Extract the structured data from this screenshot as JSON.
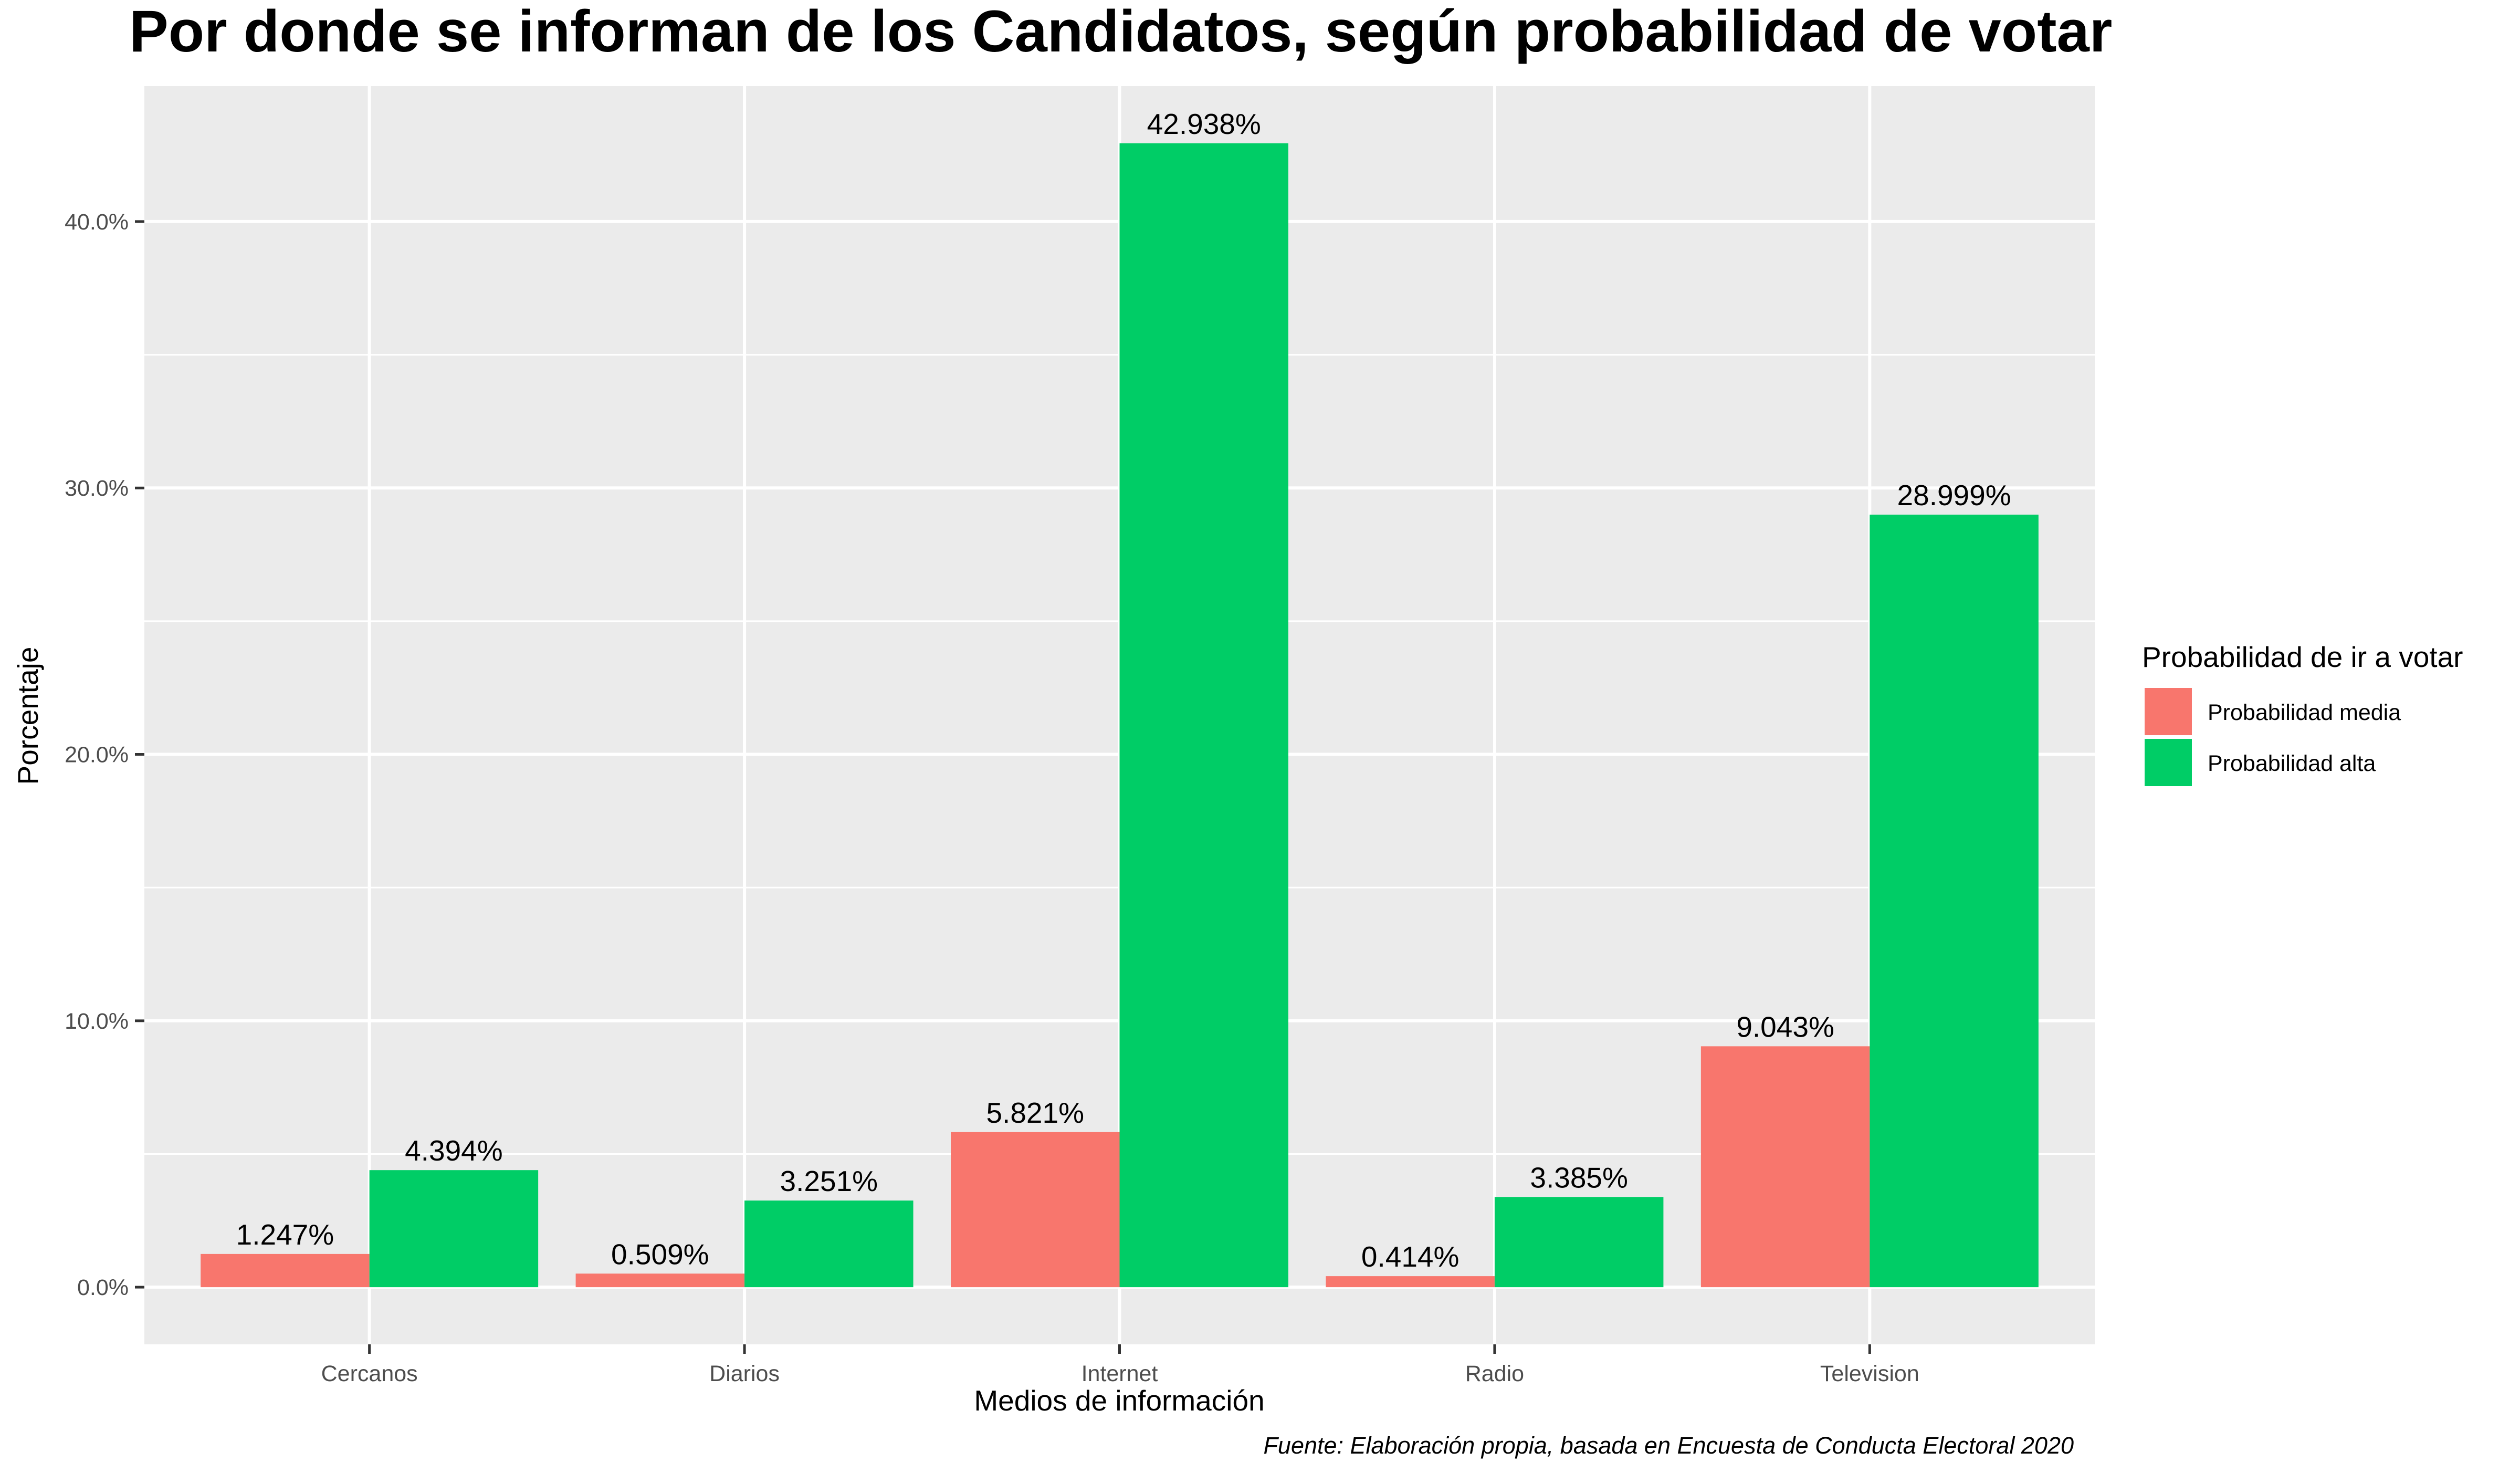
{
  "chart_data": {
    "type": "bar",
    "title": "Por donde se informan de los Candidatos, según probabilidad de votar",
    "xlabel": "Medios de información",
    "ylabel": "Porcentaje",
    "caption": "Fuente: Elaboración propia, basada en Encuesta de Conducta Electoral 2020",
    "categories": [
      "Cercanos",
      "Diarios",
      "Internet",
      "Radio",
      "Television"
    ],
    "series": [
      {
        "name": "Probabilidad media",
        "color": "#F8766D",
        "values": [
          1.247,
          0.509,
          5.821,
          0.414,
          9.043
        ],
        "labels": [
          "1.247%",
          "0.509%",
          "5.821%",
          "0.414%",
          "9.043%"
        ]
      },
      {
        "name": "Probabilidad alta",
        "color": "#00CD66",
        "values": [
          4.394,
          3.251,
          42.938,
          3.385,
          28.999
        ],
        "labels": [
          "4.394%",
          "3.251%",
          "42.938%",
          "3.385%",
          "28.999%"
        ]
      }
    ],
    "ylim": [
      -2.146,
      45.084
    ],
    "y_ticks": [
      0,
      10,
      20,
      30,
      40
    ],
    "y_tick_labels": [
      "0.0%",
      "10.0%",
      "20.0%",
      "30.0%",
      "40.0%"
    ],
    "legend_title": "Probabilidad de ir a votar",
    "legend_position": "right",
    "grid": true,
    "panel_background": "#EBEBEB",
    "grid_color": "#FFFFFF"
  }
}
